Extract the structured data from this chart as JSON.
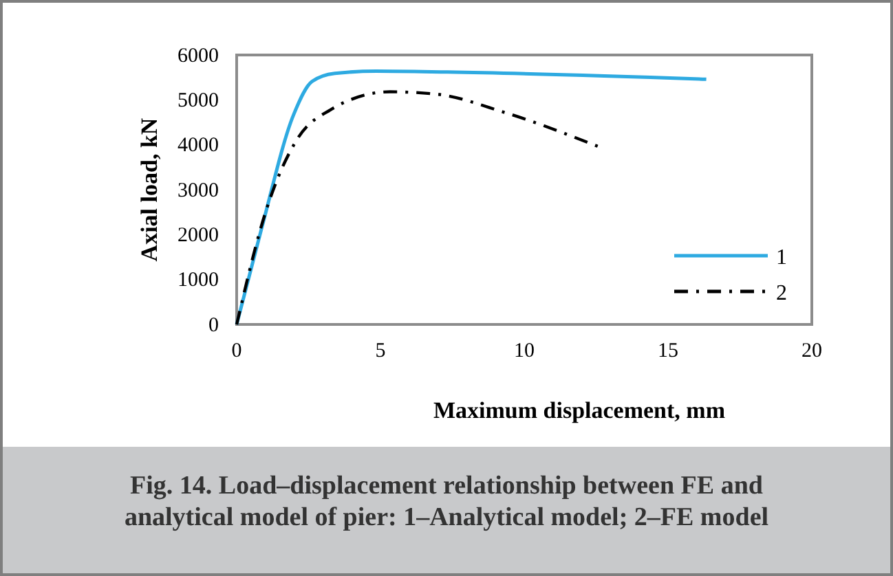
{
  "chart_data": {
    "type": "line",
    "xlabel": "Maximum displacement, mm",
    "ylabel": "Axial load, kN",
    "annotations": [
      "Fig. 14. Load–displacement relationship between FE and analytical model of pier: 1–Analytical model; 2–FE model"
    ],
    "xlim": [
      0,
      20
    ],
    "xticks": [
      0,
      5,
      10,
      15,
      20
    ],
    "ylim": [
      0,
      6000
    ],
    "yticks": [
      0,
      1000,
      2000,
      3000,
      4000,
      5000,
      6000
    ],
    "grid": false,
    "legend": "bottom right",
    "marker": "none",
    "series": [
      {
        "name": "1",
        "color": "#2eaae1",
        "line_style": "solid",
        "x": [
          0,
          0.86,
          1.98,
          2.62,
          3.41,
          4.85,
          7.32,
          16.33
        ],
        "values": [
          0,
          2120,
          4670,
          5410,
          5590,
          5640,
          5620,
          5460
        ]
      },
      {
        "name": "2",
        "color": "#000000",
        "line_style": "dashdot",
        "x": [
          0,
          1.02,
          2.14,
          3.25,
          5.33,
          6.92,
          9.32,
          12.66
        ],
        "values": [
          0,
          2530,
          4160,
          4775,
          5180,
          5130,
          4720,
          3940
        ]
      }
    ]
  }
}
